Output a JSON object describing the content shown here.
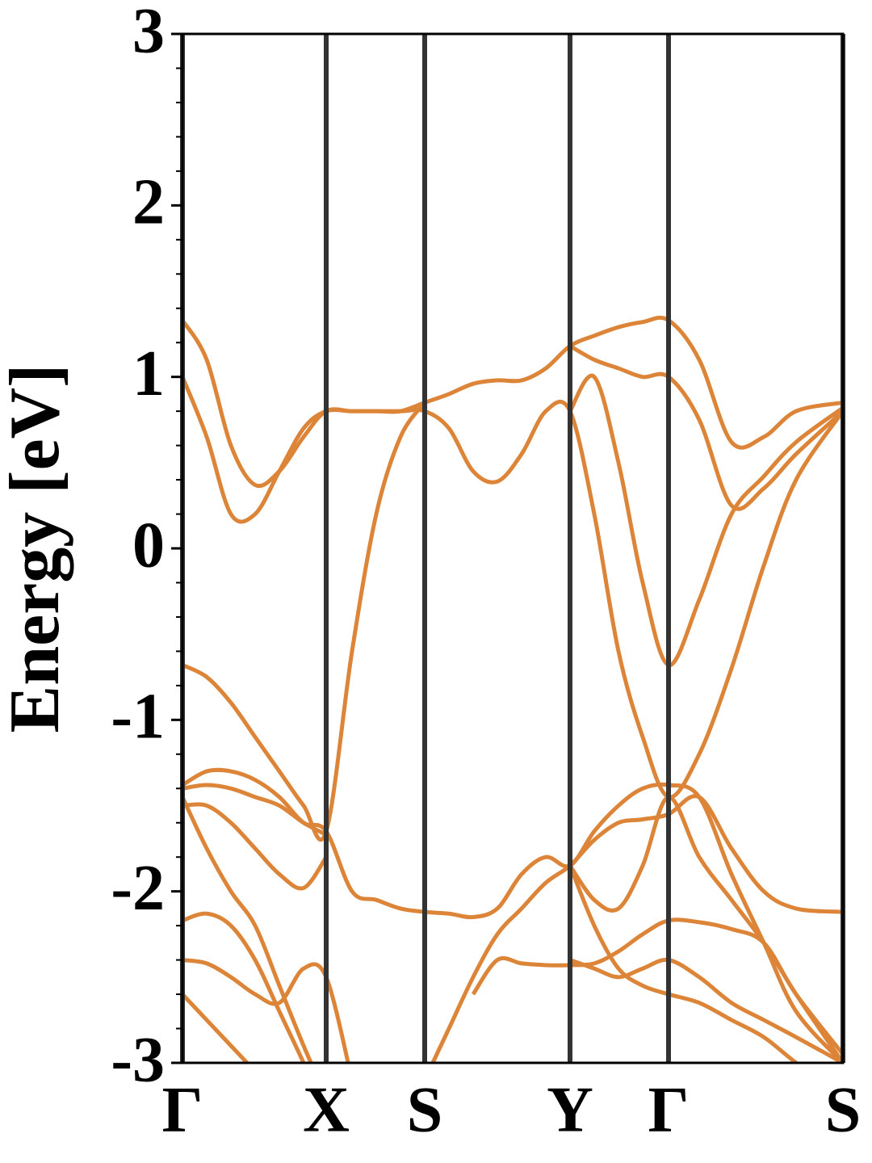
{
  "chart_data": {
    "type": "line",
    "ylabel": "Energy [eV]",
    "color": "#dc8437",
    "x": [
      0,
      0.3,
      0.6,
      0.9,
      1.2,
      1.5,
      1.78,
      2.1,
      2.4,
      2.7,
      3.0,
      3.3,
      3.6,
      3.9,
      4.2,
      4.5,
      4.8,
      5.1,
      5.4,
      5.7,
      6.02,
      6.4,
      6.8,
      7.2,
      7.6,
      8.18
    ],
    "xlim": [
      0,
      8.18
    ],
    "xticks": [
      {
        "value": 0,
        "label": "Γ"
      },
      {
        "value": 1.78,
        "label": "X"
      },
      {
        "value": 3.0,
        "label": "S"
      },
      {
        "value": 4.8,
        "label": "Y"
      },
      {
        "value": 6.02,
        "label": "Γ"
      },
      {
        "value": 8.18,
        "label": "S"
      }
    ],
    "ylim": [
      -3,
      3
    ],
    "yticks": [
      -3,
      -2,
      -1,
      0,
      1,
      2,
      3
    ],
    "yminorticks": [
      -2.8,
      -2.6,
      -2.4,
      -2.2,
      -1.8,
      -1.6,
      -1.4,
      -1.2,
      -0.8,
      -0.6,
      -0.4,
      -0.2,
      0.2,
      0.4,
      0.6,
      0.8,
      1.2,
      1.4,
      1.6,
      1.8,
      2.2,
      2.4,
      2.6,
      2.8
    ],
    "series": [
      {
        "values": [
          1.33,
          1.1,
          0.6,
          0.37,
          0.45,
          0.65,
          0.8,
          0.8,
          0.8,
          0.8,
          0.85,
          0.9,
          0.96,
          0.98,
          0.98,
          1.05,
          1.18,
          1.24,
          1.29,
          1.32,
          1.33,
          1.1,
          0.62,
          0.65,
          0.8,
          0.85
        ]
      },
      {
        "values": [
          1.0,
          0.65,
          0.2,
          0.2,
          0.45,
          0.7,
          0.8,
          0.8,
          0.8,
          0.8,
          0.8,
          0.7,
          0.45,
          0.39,
          0.55,
          0.8,
          0.8,
          0.2,
          -0.6,
          -1.1,
          -1.45,
          -1.2,
          -0.7,
          -0.1,
          0.4,
          0.8
        ]
      },
      {
        "values": [
          -0.68,
          -0.75,
          -0.9,
          -1.1,
          -1.3,
          -1.5,
          -1.65,
          -0.6,
          0.2,
          0.65,
          0.85,
          null,
          null,
          null,
          null,
          null,
          1.18,
          1.1,
          1.05,
          1.0,
          1.0,
          0.75,
          0.25,
          0.35,
          0.55,
          0.8
        ]
      },
      {
        "values": [
          null,
          null,
          null,
          null,
          null,
          null,
          null,
          null,
          null,
          null,
          null,
          null,
          null,
          null,
          null,
          null,
          0.8,
          1.0,
          0.5,
          -0.2,
          -0.68,
          -0.3,
          0.2,
          0.42,
          0.62,
          0.82
        ]
      },
      {
        "values": [
          -1.38,
          -1.3,
          -1.3,
          -1.35,
          -1.45,
          -1.6,
          -1.65,
          -2.0,
          -2.05,
          -2.1,
          -2.12,
          -2.13,
          -2.15,
          -2.1,
          -1.9,
          -1.8,
          -1.85,
          -1.65,
          -1.5,
          -1.4,
          -1.38,
          -1.45,
          -1.9,
          -2.3,
          -2.7,
          -3.0
        ]
      },
      {
        "values": [
          -1.5,
          -1.5,
          -1.6,
          -1.75,
          -1.9,
          -1.98,
          -1.8,
          null,
          null,
          null,
          null,
          null,
          null,
          null,
          null,
          null,
          null,
          null,
          null,
          null,
          null,
          null,
          null,
          null,
          null,
          null
        ]
      },
      {
        "values": [
          -1.4,
          -1.38,
          -1.4,
          -1.45,
          -1.5,
          -1.6,
          -1.67,
          null,
          null,
          null,
          null,
          null,
          null,
          null,
          null,
          null,
          null,
          null,
          null,
          null,
          null,
          null,
          null,
          null,
          null,
          null
        ]
      },
      {
        "values": [
          -1.45,
          -1.75,
          -2.0,
          -2.2,
          -2.55,
          -2.9,
          -3.2,
          null,
          null,
          null,
          null,
          null,
          null,
          null,
          null,
          null,
          null,
          null,
          null,
          null,
          null,
          null,
          null,
          null,
          null,
          null
        ]
      },
      {
        "values": [
          -2.17,
          -2.13,
          -2.2,
          -2.4,
          -2.7,
          -3.0,
          -3.3,
          null,
          null,
          null,
          null,
          null,
          null,
          null,
          null,
          null,
          null,
          null,
          null,
          null,
          null,
          null,
          null,
          null,
          null,
          null
        ]
      },
      {
        "values": [
          -2.4,
          -2.42,
          -2.5,
          -2.6,
          -2.65,
          -2.45,
          -2.5,
          -3.1,
          null,
          null,
          null,
          null,
          null,
          null,
          null,
          null,
          null,
          null,
          null,
          null,
          null,
          null,
          null,
          null,
          null,
          null
        ]
      },
      {
        "values": [
          -2.6,
          -2.75,
          -2.9,
          -3.05,
          null,
          null,
          null,
          null,
          null,
          null,
          null,
          null,
          null,
          null,
          null,
          null,
          null,
          null,
          null,
          null,
          null,
          null,
          null,
          null,
          null,
          null
        ]
      },
      {
        "values": [
          null,
          null,
          null,
          null,
          null,
          null,
          null,
          null,
          null,
          null,
          -3.1,
          -2.8,
          -2.5,
          -2.25,
          -2.1,
          -1.95,
          -1.85,
          -1.7,
          -1.6,
          -1.58,
          -1.55,
          -1.45,
          -1.75,
          -2.0,
          -2.1,
          -2.12
        ]
      },
      {
        "values": [
          null,
          null,
          null,
          null,
          null,
          null,
          null,
          null,
          null,
          null,
          null,
          null,
          null,
          null,
          null,
          null,
          -1.85,
          -2.05,
          -2.1,
          -1.85,
          -1.45,
          -1.8,
          -2.05,
          -2.3,
          -2.6,
          -3.0
        ]
      },
      {
        "values": [
          null,
          null,
          null,
          null,
          null,
          null,
          null,
          null,
          null,
          null,
          null,
          null,
          null,
          null,
          null,
          null,
          -1.85,
          -2.2,
          -2.45,
          -2.55,
          -2.6,
          -2.65,
          -2.75,
          -2.85,
          -3.0,
          -3.2
        ]
      },
      {
        "values": [
          null,
          null,
          null,
          null,
          null,
          null,
          null,
          null,
          null,
          null,
          null,
          null,
          -2.6,
          -2.4,
          -2.42,
          -2.43,
          -2.43,
          -2.42,
          -2.35,
          -2.25,
          -2.17,
          -2.18,
          -2.22,
          -2.3,
          -2.6,
          -2.95
        ]
      },
      {
        "values": [
          null,
          null,
          null,
          null,
          null,
          null,
          null,
          null,
          null,
          null,
          null,
          null,
          null,
          null,
          null,
          null,
          -2.4,
          -2.45,
          -2.5,
          -2.45,
          -2.4,
          -2.5,
          -2.65,
          -2.75,
          -2.85,
          -3.0
        ]
      }
    ]
  }
}
